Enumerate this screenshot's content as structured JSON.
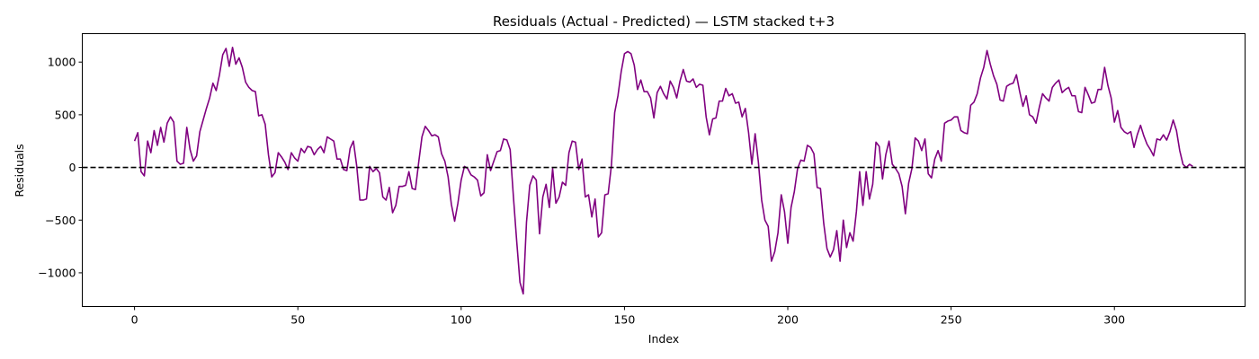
{
  "chart_data": {
    "type": "line",
    "title": "Residuals (Actual - Predicted) — LSTM stacked t+3",
    "xlabel": "Index",
    "ylabel": "Residuals",
    "xlim": [
      -16,
      340
    ],
    "ylim": [
      -1320,
      1270
    ],
    "x_ticks": [
      0,
      50,
      100,
      150,
      200,
      250,
      300
    ],
    "y_ticks": [
      -1000,
      -500,
      0,
      500,
      1000
    ],
    "grid": false,
    "legend": "none",
    "reference_line": {
      "y": 0,
      "style": "dashed",
      "color": "#000000"
    },
    "series": [
      {
        "color": "#800080",
        "x_start": 0,
        "x_step": 1,
        "values": [
          250,
          330,
          -40,
          -80,
          250,
          140,
          350,
          210,
          380,
          240,
          420,
          480,
          430,
          60,
          30,
          40,
          380,
          170,
          60,
          110,
          340,
          450,
          560,
          660,
          800,
          730,
          880,
          1070,
          1130,
          960,
          1140,
          980,
          1040,
          950,
          810,
          760,
          730,
          720,
          490,
          500,
          410,
          120,
          -90,
          -50,
          140,
          100,
          50,
          -20,
          140,
          90,
          60,
          180,
          140,
          200,
          190,
          120,
          170,
          200,
          140,
          290,
          270,
          250,
          80,
          80,
          -20,
          -30,
          180,
          250,
          20,
          -310,
          -310,
          -300,
          10,
          -40,
          -10,
          -50,
          -280,
          -310,
          -190,
          -430,
          -360,
          -180,
          -180,
          -170,
          -40,
          -200,
          -210,
          50,
          290,
          390,
          350,
          300,
          310,
          290,
          130,
          60,
          -90,
          -350,
          -510,
          -340,
          -120,
          10,
          -10,
          -70,
          -90,
          -120,
          -270,
          -240,
          120,
          -30,
          60,
          150,
          160,
          270,
          260,
          170,
          -280,
          -700,
          -1090,
          -1200,
          -520,
          -170,
          -80,
          -120,
          -630,
          -280,
          -160,
          -380,
          -10,
          -340,
          -280,
          -140,
          -170,
          140,
          250,
          240,
          -20,
          80,
          -280,
          -260,
          -470,
          -300,
          -660,
          -620,
          -260,
          -250,
          20,
          520,
          680,
          910,
          1080,
          1100,
          1080,
          970,
          740,
          830,
          720,
          720,
          660,
          470,
          710,
          770,
          700,
          650,
          820,
          760,
          660,
          820,
          930,
          820,
          810,
          840,
          760,
          790,
          780,
          480,
          310,
          460,
          470,
          630,
          630,
          750,
          680,
          700,
          610,
          620,
          480,
          560,
          330,
          30,
          320,
          50,
          -310,
          -500,
          -560,
          -890,
          -800,
          -620,
          -260,
          -420,
          -720,
          -380,
          -230,
          -10,
          70,
          60,
          210,
          190,
          130,
          -190,
          -200,
          -530,
          -770,
          -850,
          -780,
          -600,
          -890,
          -500,
          -760,
          -620,
          -700,
          -420,
          -40,
          -360,
          -40,
          -300,
          -160,
          240,
          200,
          -110,
          120,
          250,
          30,
          -10,
          -60,
          -180,
          -440,
          -150,
          -10,
          280,
          250,
          160,
          270,
          -60,
          -100,
          80,
          160,
          60,
          420,
          440,
          450,
          480,
          480,
          350,
          330,
          320,
          590,
          620,
          700,
          850,
          950,
          1110,
          980,
          870,
          790,
          640,
          630,
          770,
          790,
          800,
          880,
          720,
          580,
          680,
          500,
          480,
          420,
          570,
          700,
          660,
          630,
          760,
          800,
          830,
          710,
          740,
          760,
          680,
          680,
          530,
          520,
          760,
          690,
          610,
          620,
          740,
          740,
          950,
          780,
          660,
          430,
          540,
          380,
          340,
          320,
          340,
          190,
          310,
          400,
          300,
          220,
          170,
          110,
          270,
          260,
          310,
          260,
          340,
          450,
          350,
          160,
          30,
          0,
          30,
          10
        ]
      }
    ]
  }
}
